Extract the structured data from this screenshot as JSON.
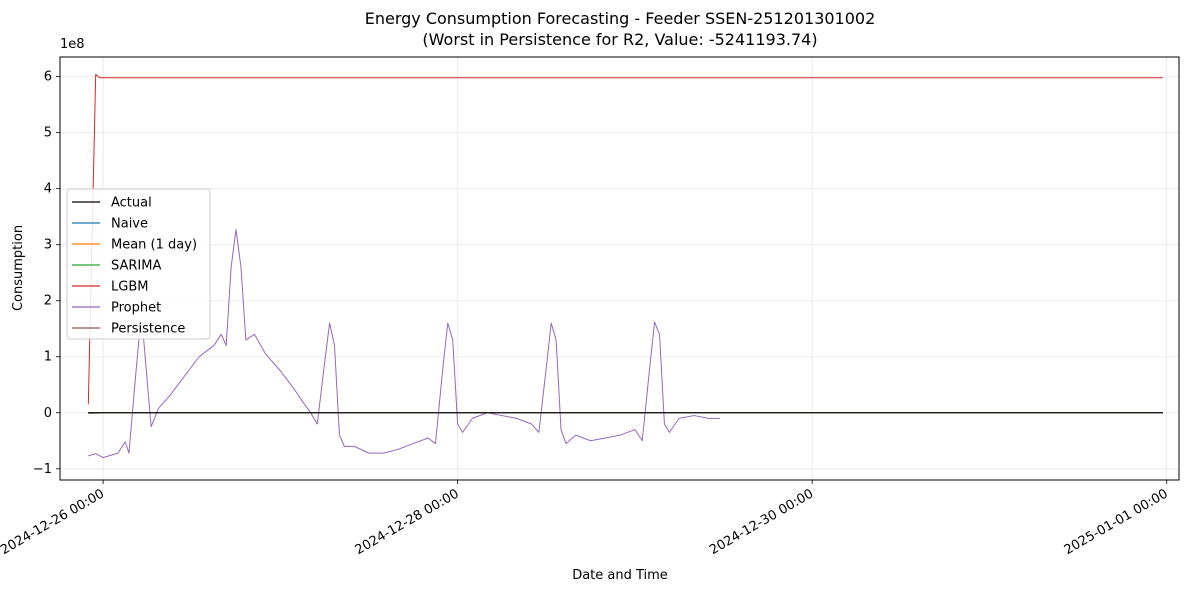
{
  "chart_data": {
    "type": "line",
    "title": "Energy Consumption Forecasting - Feeder SSEN-251201301002",
    "subtitle": "(Worst in Persistence for R2, Value: -5241193.74)",
    "xlabel": "Date and Time",
    "ylabel": "Consumption",
    "y_offset_label": "1e8",
    "y_scale": 100000000,
    "x_ticks": [
      {
        "value": "2024-12-26 00:00",
        "label": "2024-12-26 00:00"
      },
      {
        "value": "2024-12-28 00:00",
        "label": "2024-12-28 00:00"
      },
      {
        "value": "2024-12-30 00:00",
        "label": "2024-12-30 00:00"
      },
      {
        "value": "2025-01-01 00:00",
        "label": "2025-01-01 00:00"
      }
    ],
    "y_ticks": [
      -1,
      0,
      1,
      2,
      3,
      4,
      5,
      6
    ],
    "xlim": [
      "2025-12-25 18:10",
      "2025-01-01 01:40"
    ],
    "ylim": [
      -1.2,
      6.35
    ],
    "grid": true,
    "legend_position": "center-left",
    "series": [
      {
        "name": "Actual",
        "color": "#000000",
        "points": [
          [
            "2024-12-25 22:00",
            -0.0005
          ],
          [
            "2024-12-31 23:30",
            -0.0005
          ]
        ]
      },
      {
        "name": "Naive",
        "color": "#1f77b4",
        "points": [
          [
            "2024-12-25 22:00",
            -0.0003
          ],
          [
            "2024-12-31 23:30",
            -0.0003
          ]
        ]
      },
      {
        "name": "Mean (1 day)",
        "color": "#ff7f0e",
        "points": [
          [
            "2024-12-25 22:00",
            -0.0004
          ],
          [
            "2024-12-31 23:30",
            -0.0004
          ]
        ]
      },
      {
        "name": "SARIMA",
        "color": "#2ca02c",
        "points": [
          [
            "2024-12-25 22:00",
            -0.01
          ],
          [
            "2024-12-26 00:00",
            -0.005
          ],
          [
            "2024-12-31 23:30",
            -0.003
          ]
        ]
      },
      {
        "name": "LGBM",
        "color": "#d62728",
        "points": [
          [
            "2024-12-25 22:00",
            0.15
          ],
          [
            "2024-12-25 23:00",
            6.04
          ],
          [
            "2024-12-25 23:30",
            5.98
          ],
          [
            "2024-12-31 23:30",
            5.98
          ]
        ]
      },
      {
        "name": "Prophet",
        "color": "#9467bd",
        "points": [
          [
            "2024-12-25 22:00",
            -0.77
          ],
          [
            "2024-12-25 23:00",
            -0.73
          ],
          [
            "2024-12-26 00:00",
            -0.8
          ],
          [
            "2024-12-26 01:00",
            -0.76
          ],
          [
            "2024-12-26 02:00",
            -0.72
          ],
          [
            "2024-12-26 03:00",
            -0.52
          ],
          [
            "2024-12-26 03:30",
            -0.72
          ],
          [
            "2024-12-26 04:30",
            0.8
          ],
          [
            "2024-12-26 05:00",
            1.52
          ],
          [
            "2024-12-26 05:30",
            1.3
          ],
          [
            "2024-12-26 06:30",
            -0.25
          ],
          [
            "2024-12-26 07:30",
            0.08
          ],
          [
            "2024-12-26 09:00",
            0.3
          ],
          [
            "2024-12-26 11:00",
            0.65
          ],
          [
            "2024-12-26 13:00",
            1.0
          ],
          [
            "2024-12-26 15:00",
            1.2
          ],
          [
            "2024-12-26 16:00",
            1.4
          ],
          [
            "2024-12-26 16:40",
            1.2
          ],
          [
            "2024-12-26 17:20",
            2.6
          ],
          [
            "2024-12-26 18:00",
            3.27
          ],
          [
            "2024-12-26 18:40",
            2.6
          ],
          [
            "2024-12-26 19:20",
            1.3
          ],
          [
            "2024-12-26 20:30",
            1.4
          ],
          [
            "2024-12-26 22:00",
            1.05
          ],
          [
            "2024-12-27 00:00",
            0.75
          ],
          [
            "2024-12-27 02:00",
            0.4
          ],
          [
            "2024-12-27 03:00",
            0.2
          ],
          [
            "2024-12-27 04:00",
            0.02
          ],
          [
            "2024-12-27 05:00",
            -0.2
          ],
          [
            "2024-12-27 06:00",
            0.9
          ],
          [
            "2024-12-27 06:40",
            1.6
          ],
          [
            "2024-12-27 07:20",
            1.2
          ],
          [
            "2024-12-27 08:00",
            -0.4
          ],
          [
            "2024-12-27 08:40",
            -0.6
          ],
          [
            "2024-12-27 10:00",
            -0.6
          ],
          [
            "2024-12-27 12:00",
            -0.72
          ],
          [
            "2024-12-27 14:00",
            -0.72
          ],
          [
            "2024-12-27 16:00",
            -0.65
          ],
          [
            "2024-12-27 18:00",
            -0.55
          ],
          [
            "2024-12-27 20:00",
            -0.45
          ],
          [
            "2024-12-27 21:00",
            -0.55
          ],
          [
            "2024-12-27 22:00",
            0.8
          ],
          [
            "2024-12-27 22:40",
            1.6
          ],
          [
            "2024-12-27 23:20",
            1.3
          ],
          [
            "2024-12-28 00:00",
            -0.2
          ],
          [
            "2024-12-28 00:40",
            -0.35
          ],
          [
            "2024-12-28 02:00",
            -0.1
          ],
          [
            "2024-12-28 04:00",
            0.0
          ],
          [
            "2024-12-28 06:00",
            -0.05
          ],
          [
            "2024-12-28 08:00",
            -0.1
          ],
          [
            "2024-12-28 10:00",
            -0.2
          ],
          [
            "2024-12-28 11:00",
            -0.35
          ],
          [
            "2024-12-28 12:00",
            0.8
          ],
          [
            "2024-12-28 12:40",
            1.6
          ],
          [
            "2024-12-28 13:20",
            1.3
          ],
          [
            "2024-12-28 14:00",
            -0.3
          ],
          [
            "2024-12-28 14:40",
            -0.55
          ],
          [
            "2024-12-28 16:00",
            -0.4
          ],
          [
            "2024-12-28 18:00",
            -0.5
          ],
          [
            "2024-12-28 20:00",
            -0.45
          ],
          [
            "2024-12-28 22:00",
            -0.4
          ],
          [
            "2024-12-29 00:00",
            -0.3
          ],
          [
            "2024-12-29 01:00",
            -0.5
          ],
          [
            "2024-12-29 02:00",
            0.8
          ],
          [
            "2024-12-29 02:40",
            1.62
          ],
          [
            "2024-12-29 03:20",
            1.4
          ],
          [
            "2024-12-29 04:00",
            -0.2
          ],
          [
            "2024-12-29 04:40",
            -0.35
          ],
          [
            "2024-12-29 06:00",
            -0.1
          ],
          [
            "2024-12-29 08:00",
            -0.05
          ],
          [
            "2024-12-29 10:00",
            -0.1
          ],
          [
            "2024-12-29 11:00",
            -0.1
          ],
          [
            "2024-12-29 11:30",
            -0.1
          ]
        ]
      },
      {
        "name": "Persistence",
        "color": "#8c564b",
        "points": [
          [
            "2024-12-25 22:00",
            -0.0002
          ],
          [
            "2024-12-31 23:30",
            -0.0002
          ]
        ]
      }
    ]
  }
}
